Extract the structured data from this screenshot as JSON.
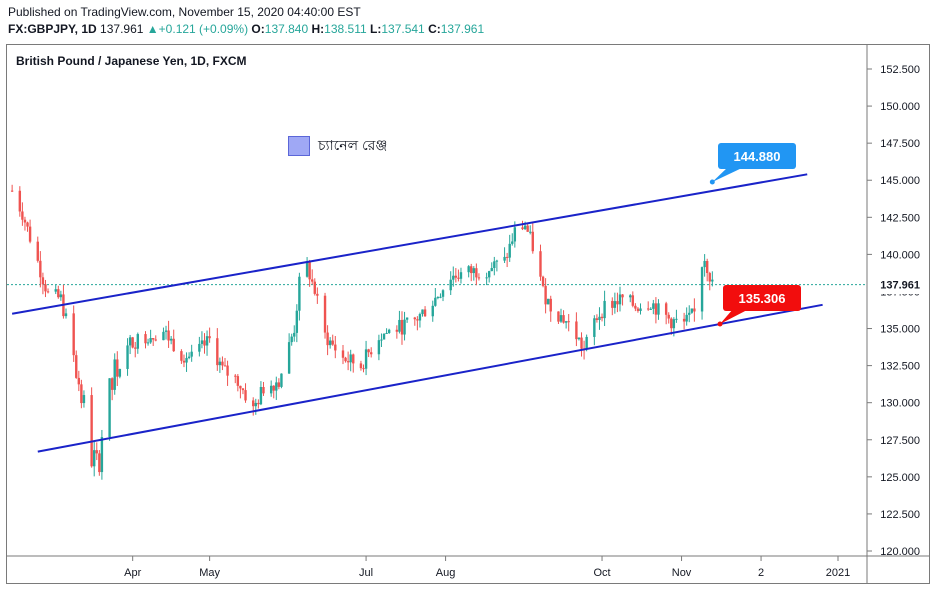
{
  "header": {
    "published": "Published on TradingView.com, November 15, 2020 04:40:00 EST",
    "symbol": "FX:GBPJPY, 1D",
    "last": "137.961",
    "change": "+0.121 (+0.09%)",
    "o_label": "O:",
    "o_value": "137.840",
    "h_label": "H:",
    "h_value": "138.511",
    "l_label": "L:",
    "l_value": "137.541",
    "c_label": "C:",
    "c_value": "137.961"
  },
  "colors": {
    "up": "#26a69a",
    "down": "#ef5350",
    "channel": "#1a23c9",
    "callout_upper": "#2196f3",
    "callout_lower": "#f20d0d",
    "last_price_line": "#26a69a"
  },
  "chart_data": {
    "type": "candlestick",
    "title": "British Pound / Japanese Yen, 1D, FXCM",
    "legend": [
      {
        "label": "চ্যানেল রেঞ্জ",
        "color": "#9fa8f5"
      }
    ],
    "x_ticks": [
      "Apr",
      "May",
      "Jul",
      "Aug",
      "Oct",
      "Nov",
      "2",
      "2021"
    ],
    "y_ticks": [
      "120.000",
      "122.500",
      "125.000",
      "127.500",
      "130.000",
      "132.500",
      "135.000",
      "137.500",
      "140.000",
      "142.500",
      "145.000",
      "147.500",
      "150.000",
      "152.500"
    ],
    "ylim": [
      120,
      153.7
    ],
    "last_price": "137.961",
    "callouts": [
      {
        "name": "upper-channel-callout",
        "text": "144.880",
        "price": 144.88
      },
      {
        "name": "lower-channel-callout",
        "text": "135.306",
        "price": 135.306
      }
    ],
    "channel": {
      "upper": [
        {
          "date": "2020-02-14",
          "price": 136.0
        },
        {
          "date": "2020-12-20",
          "price": 145.4
        }
      ],
      "lower": [
        {
          "date": "2020-02-24",
          "price": 126.7
        },
        {
          "date": "2020-12-26",
          "price": 136.6
        }
      ]
    },
    "path": [
      [
        "2020-02-14",
        144.3
      ],
      [
        "2020-02-18",
        142.8
      ],
      [
        "2020-02-24",
        139.5
      ],
      [
        "2020-02-28",
        137.3
      ],
      [
        "2020-03-04",
        137.0
      ],
      [
        "2020-03-09",
        133.5
      ],
      [
        "2020-03-12",
        130.5
      ],
      [
        "2020-03-16",
        126.5
      ],
      [
        "2020-03-18",
        125.5
      ],
      [
        "2020-03-20",
        128.0
      ],
      [
        "2020-03-25",
        131.8
      ],
      [
        "2020-03-31",
        134.0
      ],
      [
        "2020-04-06",
        134.5
      ],
      [
        "2020-04-13",
        134.8
      ],
      [
        "2020-04-20",
        133.3
      ],
      [
        "2020-04-24",
        133.0
      ],
      [
        "2020-05-01",
        134.2
      ],
      [
        "2020-05-06",
        132.2
      ],
      [
        "2020-05-12",
        131.5
      ],
      [
        "2020-05-18",
        129.5
      ],
      [
        "2020-05-22",
        131.0
      ],
      [
        "2020-05-28",
        131.5
      ],
      [
        "2020-06-03",
        135.0
      ],
      [
        "2020-06-05",
        138.0
      ],
      [
        "2020-06-08",
        139.2
      ],
      [
        "2020-06-11",
        137.5
      ],
      [
        "2020-06-15",
        134.5
      ],
      [
        "2020-06-22",
        133.0
      ],
      [
        "2020-06-29",
        132.5
      ],
      [
        "2020-07-06",
        134.5
      ],
      [
        "2020-07-13",
        135.0
      ],
      [
        "2020-07-20",
        135.5
      ],
      [
        "2020-07-27",
        136.8
      ],
      [
        "2020-08-03",
        138.5
      ],
      [
        "2020-08-10",
        138.8
      ],
      [
        "2020-08-17",
        139.0
      ],
      [
        "2020-08-24",
        139.5
      ],
      [
        "2020-08-28",
        141.5
      ],
      [
        "2020-09-01",
        142.0
      ],
      [
        "2020-09-04",
        140.5
      ],
      [
        "2020-09-08",
        137.5
      ],
      [
        "2020-09-11",
        136.5
      ],
      [
        "2020-09-17",
        135.5
      ],
      [
        "2020-09-21",
        134.5
      ],
      [
        "2020-09-24",
        133.5
      ],
      [
        "2020-09-28",
        135.5
      ],
      [
        "2020-10-02",
        136.5
      ],
      [
        "2020-10-09",
        137.0
      ],
      [
        "2020-10-14",
        136.5
      ],
      [
        "2020-10-20",
        136.8
      ],
      [
        "2020-10-23",
        136.2
      ],
      [
        "2020-10-28",
        135.5
      ],
      [
        "2020-11-02",
        135.3
      ],
      [
        "2020-11-06",
        136.0
      ],
      [
        "2020-11-08",
        139.0
      ],
      [
        "2020-11-10",
        139.8
      ],
      [
        "2020-11-13",
        137.96
      ]
    ]
  }
}
